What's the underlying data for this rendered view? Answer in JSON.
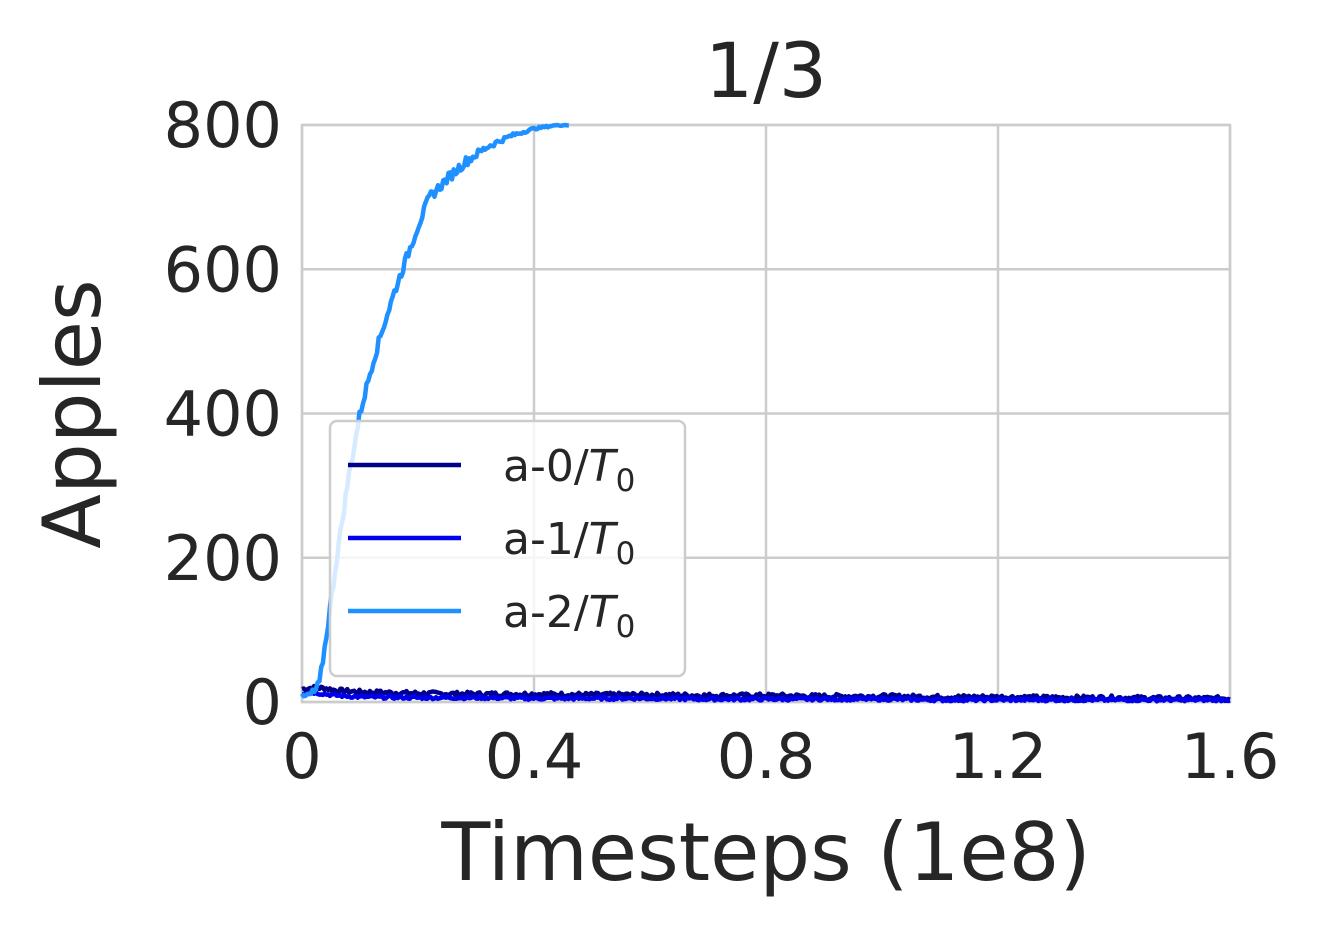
{
  "chart_data": {
    "type": "line",
    "title": "1/3",
    "xlabel": "Timesteps (1e8)",
    "ylabel": "Apples",
    "xlim": [
      0,
      1.6
    ],
    "ylim": [
      0,
      800
    ],
    "x_ticks": [
      0,
      0.4,
      0.8,
      1.2,
      1.6
    ],
    "x_tick_labels": [
      "0",
      "0.4",
      "0.8",
      "1.2",
      "1.6"
    ],
    "y_ticks": [
      0,
      200,
      400,
      600,
      800
    ],
    "y_tick_labels": [
      "0",
      "200",
      "400",
      "600",
      "800"
    ],
    "grid": true,
    "legend_position": "lower-left",
    "series": [
      {
        "name": "a-0/T0",
        "label_main": "a-0/",
        "label_var": "T",
        "label_sub": "0",
        "color": "#00008b",
        "x": [
          0,
          0.02,
          0.04,
          0.06,
          0.1,
          0.2,
          0.3,
          0.4,
          0.5,
          0.6,
          0.7,
          0.8,
          0.9,
          1.0,
          1.1,
          1.2,
          1.3,
          1.4,
          1.5,
          1.6
        ],
        "y": [
          18,
          20,
          19,
          16,
          14,
          12,
          11,
          11,
          10,
          10,
          9,
          9,
          8,
          8,
          7,
          7,
          6,
          6,
          5,
          5
        ]
      },
      {
        "name": "a-1/T0",
        "label_main": "a-1/",
        "label_var": "T",
        "label_sub": "0",
        "color": "#0000ee",
        "x": [
          0,
          0.02,
          0.04,
          0.06,
          0.1,
          0.2,
          0.3,
          0.4,
          0.5,
          0.6,
          0.7,
          0.8,
          0.9,
          1.0,
          1.1,
          1.2,
          1.3,
          1.4,
          1.5,
          1.6
        ],
        "y": [
          12,
          13,
          11,
          9,
          7,
          6,
          6,
          5,
          5,
          5,
          4,
          4,
          4,
          4,
          3,
          3,
          3,
          3,
          3,
          3
        ]
      },
      {
        "name": "a-2/T0",
        "label_main": "a-2/",
        "label_var": "T",
        "label_sub": "0",
        "color": "#1e90ff",
        "x": [
          0,
          0.01,
          0.02,
          0.03,
          0.04,
          0.06,
          0.08,
          0.1,
          0.12,
          0.14,
          0.16,
          0.18,
          0.2,
          0.22,
          0.25,
          0.28,
          0.32,
          0.36,
          0.4,
          0.44,
          0.46
        ],
        "y": [
          5,
          8,
          12,
          25,
          80,
          200,
          310,
          400,
          465,
          520,
          570,
          615,
          660,
          700,
          725,
          748,
          770,
          785,
          795,
          800,
          800
        ]
      }
    ]
  }
}
